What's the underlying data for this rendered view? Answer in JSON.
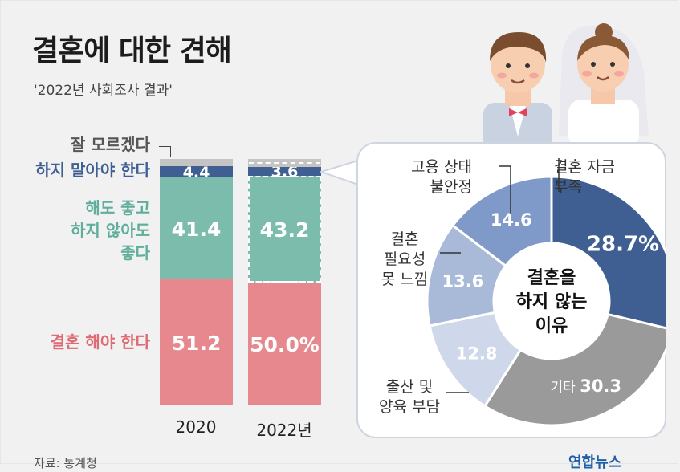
{
  "header": {
    "title": "결혼에 대한 견해",
    "subtitle": "'2022년 사회조사 결과'"
  },
  "source": "자료: 통계청",
  "logo": "연합뉴스",
  "colors": {
    "should_marry": "#e6888e",
    "either": "#7cbcac",
    "should_not": "#3f5f93",
    "unsure": "#c4c4c4",
    "pie_funds": "#3f5f93",
    "pie_job": "#7f99c8",
    "pie_need": "#a9bad9",
    "pie_birth": "#cfd8ea",
    "pie_other": "#9a9a9a"
  },
  "legend": {
    "unsure": "잘 모르겠다",
    "should_not": "하지 말아야 한다",
    "either_1": "해도 좋고",
    "either_2": "하지 않아도",
    "either_3": "좋다",
    "should": "결혼 해야 한다"
  },
  "chart_data": [
    {
      "type": "bar",
      "stacked": true,
      "categories": [
        "2020",
        "2022년"
      ],
      "series": [
        {
          "name": "결혼 해야 한다",
          "values": [
            51.2,
            50.0
          ],
          "labels": [
            "51.2",
            "50.0%"
          ]
        },
        {
          "name": "해도 좋고 하지 않아도 좋다",
          "values": [
            41.4,
            43.2
          ],
          "labels": [
            "41.4",
            "43.2"
          ]
        },
        {
          "name": "하지 말아야 한다",
          "values": [
            4.4,
            3.6
          ],
          "labels": [
            "4.4",
            "3.6"
          ]
        },
        {
          "name": "잘 모르겠다",
          "values": [
            3.0,
            3.2
          ],
          "labels": [
            "",
            ""
          ]
        }
      ]
    },
    {
      "type": "pie",
      "title": "결혼을 하지 않는 이유",
      "title_lines": [
        "결혼을",
        "하지 않는",
        "이유"
      ],
      "slices": [
        {
          "name": "결혼 자금 부족",
          "name_lines": [
            "결혼 자금",
            "부족"
          ],
          "value": 28.7,
          "label": "28.7%"
        },
        {
          "name": "기타",
          "name_lines": [
            "기타"
          ],
          "value": 30.3,
          "label": "30.3"
        },
        {
          "name": "출산 및 양육 부담",
          "name_lines": [
            "출산 및",
            "양육 부담"
          ],
          "value": 12.8,
          "label": "12.8"
        },
        {
          "name": "결혼 필요성 못 느낌",
          "name_lines": [
            "결혼",
            "필요성",
            "못 느낌"
          ],
          "value": 13.6,
          "label": "13.6"
        },
        {
          "name": "고용 상태 불안정",
          "name_lines": [
            "고용 상태",
            "불안정"
          ],
          "value": 14.6,
          "label": "14.6"
        }
      ]
    }
  ]
}
